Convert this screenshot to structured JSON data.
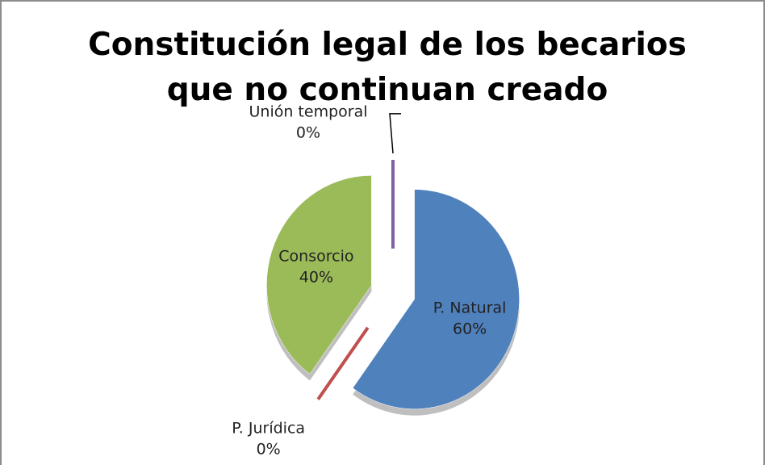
{
  "chart_data": {
    "type": "pie",
    "title": "Constitución legal de los becarios que no continuan creado",
    "categories": [
      "P. Natural",
      "P. Jurídica",
      "Consorcio",
      "Unión temporal"
    ],
    "values": [
      60,
      0,
      40,
      0
    ],
    "value_labels": [
      "60%",
      "0%",
      "40%",
      "0%"
    ],
    "colors": [
      "#4f81bd",
      "#c0504d",
      "#9bbb59",
      "#8064a2"
    ]
  }
}
